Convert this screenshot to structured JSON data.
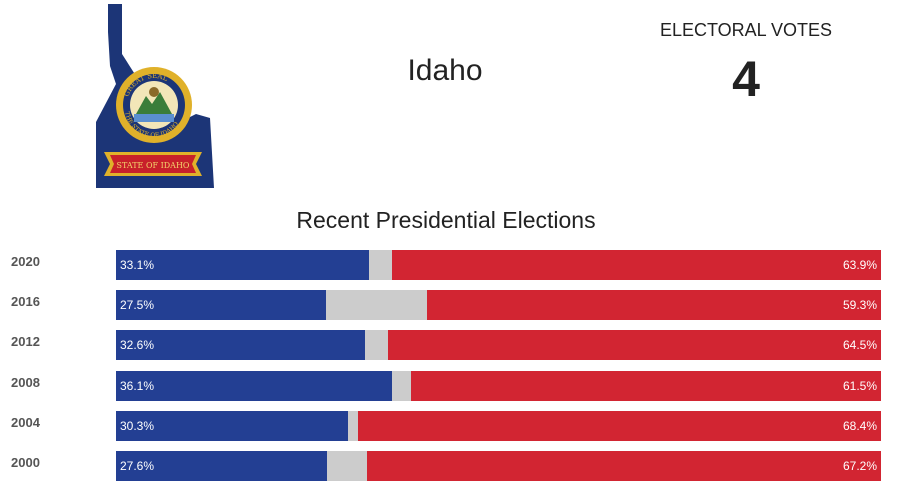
{
  "header": {
    "state_name": "Idaho",
    "electoral_label": "ELECTORAL VOTES",
    "electoral_votes": "4"
  },
  "map": {
    "seal_text_top": "GREAT SEAL",
    "seal_text_bottom": "THE STATE OF IDAHO",
    "banner_text": "STATE OF IDAHO",
    "colors": {
      "flag_blue": "#1c3577",
      "seal_gold": "#e0b12a",
      "banner_red": "#c8202a"
    }
  },
  "chart_data": {
    "type": "bar",
    "title": "Recent Presidential Elections",
    "categories": [
      "2020",
      "2016",
      "2012",
      "2008",
      "2004",
      "2000"
    ],
    "series": [
      {
        "values": [
          33.1,
          27.5,
          32.6,
          36.1,
          30.3,
          27.6
        ],
        "color": "#233f93"
      },
      {
        "values": [
          63.9,
          59.3,
          64.5,
          61.5,
          68.4,
          67.2
        ],
        "color": "#d22532"
      }
    ],
    "dem_labels": [
      "33.1%",
      "27.5%",
      "32.6%",
      "36.1%",
      "30.3%",
      "27.6%"
    ],
    "rep_labels": [
      "63.9%",
      "59.3%",
      "64.5%",
      "61.5%",
      "68.4%",
      "67.2%"
    ],
    "stacked": true,
    "xlim": [
      0,
      100
    ],
    "other_color": "#cccccc"
  }
}
